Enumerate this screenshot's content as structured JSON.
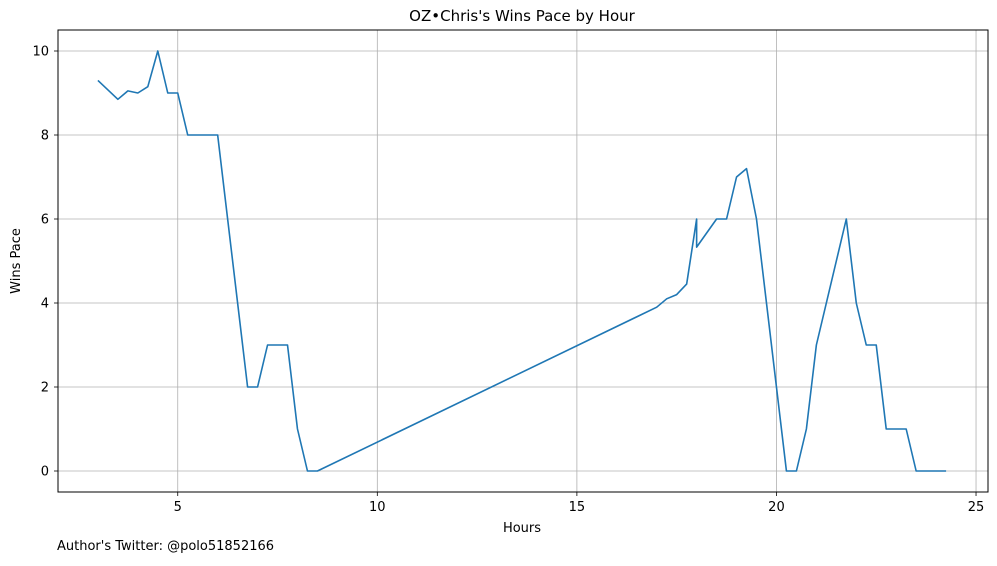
{
  "chart_data": {
    "type": "line",
    "title": "OZ•Chris's Wins Pace by Hour",
    "xlabel": "Hours",
    "ylabel": "Wins Pace",
    "xlim": [
      2,
      25.3
    ],
    "ylim": [
      -0.5,
      10.5
    ],
    "xticks": [
      5,
      10,
      15,
      20,
      25
    ],
    "yticks": [
      0,
      2,
      4,
      6,
      8,
      10
    ],
    "grid": true,
    "series": [
      {
        "color": "#1f77b4",
        "x": [
          3,
          3.5,
          3.75,
          4,
          4.25,
          4.5,
          4.75,
          5,
          5.25,
          5.5,
          5.75,
          6,
          6.5,
          6.75,
          7,
          7.25,
          7.5,
          7.75,
          8,
          8.25,
          8.5,
          17,
          17.25,
          17.5,
          17.75,
          18,
          18,
          18.5,
          18.75,
          19,
          19.25,
          19.5,
          20.25,
          20.5,
          20.75,
          21,
          21.75,
          22,
          22.25,
          22.5,
          22.75,
          23,
          23.25,
          23.5,
          24.25
        ],
        "y": [
          9.3,
          8.85,
          9.05,
          9.0,
          9.15,
          10.0,
          9.0,
          9.0,
          8.0,
          8.0,
          8.0,
          8.0,
          4.0,
          2.0,
          2.0,
          3.0,
          3.0,
          3.0,
          1.0,
          0.0,
          0.0,
          3.9,
          4.1,
          4.2,
          4.45,
          6.0,
          5.33,
          6.0,
          6.0,
          7.0,
          7.2,
          6.0,
          0.0,
          0.0,
          1.0,
          3.0,
          6.0,
          4.0,
          3.0,
          3.0,
          1.0,
          1.0,
          1.0,
          0.0,
          0.0
        ]
      }
    ]
  },
  "footer": {
    "author_text": "Author's Twitter: @polo51852166"
  },
  "colors": {
    "line": "#1f77b4",
    "grid": "#b0b0b0",
    "axes": "#000000"
  }
}
